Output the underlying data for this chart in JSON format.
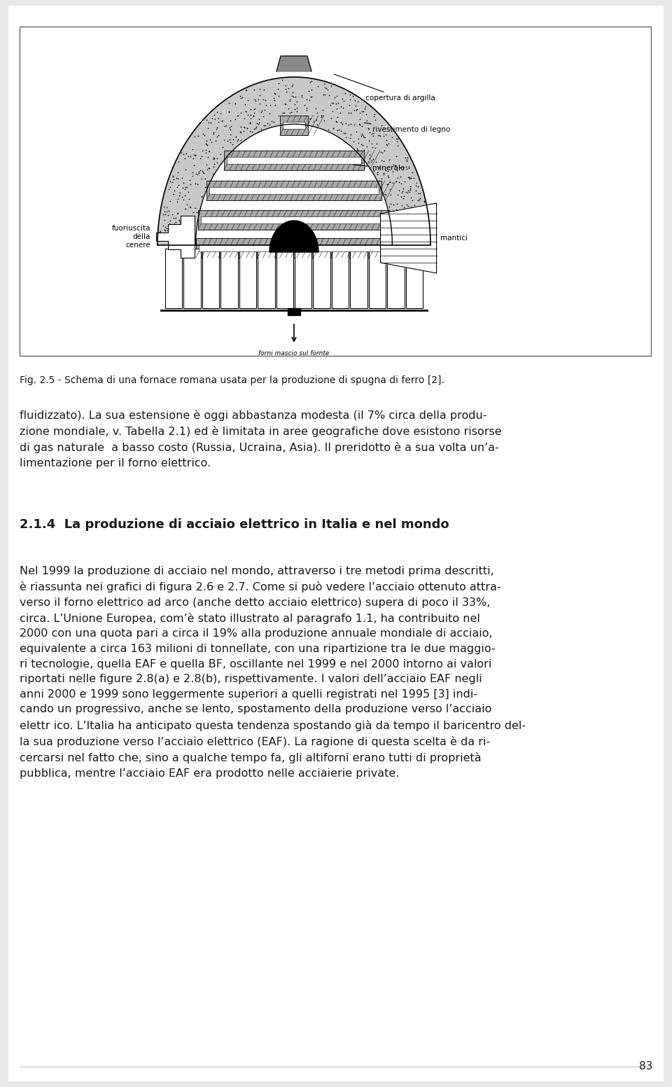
{
  "background_color": "#e8e8e8",
  "page_background": "#ffffff",
  "fig_caption": "Fig. 2.5 - Schema di una fornace romana usata per la produzione di spugna di ferro [2].",
  "fig_caption_fontsize": 10.0,
  "para1": {
    "text": "fluidizzato). La sua estensione è oggi abbastanza modesta (il 7% circa della produ-\nzione mondiale, v. Tabella 2.1) ed è limitata in aree geografiche dove esistono risorse\ndi gas naturale  a basso costo (Russia, Ucraina, Asia). Il preridotto è a sua volta un’a-\nlimentazione per il forno elettrico.",
    "fontsize": 11.5,
    "bold": false
  },
  "heading": {
    "text": "2.1.4  La produzione di acciaio elettrico in Italia e nel mondo",
    "fontsize": 13.0,
    "bold": true
  },
  "para2": {
    "text": "Nel 1999 la produzione di acciaio nel mondo, attraverso i tre metodi prima descritti,\nè riassunta nei grafici di figura 2.6 e 2.7. Come si può vedere l’acciaio ottenuto attra-\nverso il forno elettrico ad arco (anche detto acciaio elettrico) supera di poco il 33%,\ncirca. L’Unione Europea, com’è stato illustrato al paragrafo 1.1, ha contribuito nel\n2000 con una quota pari a circa il 19% alla produzione annuale mondiale di acciaio,\nequivalente a circa 163 milioni di tonnellate, con una ripartizione tra le due maggio-\nri tecnologie, quella EAF e quella BF, oscillante nel 1999 e nel 2000 intorno ai valori\nriportati nelle figure 2.8(a) e 2.8(b), rispettivamente. I valori dell’acciaio EAF negli\nanni 2000 e 1999 sono leggermente superiori a quelli registrati nel 1995 [3] indi-\ncando un progressivo, anche se lento, spostamento della produzione verso l’acciaio\nelettr ico. L’Italia ha anticipato questa tendenza spostando già da tempo il baricentro del-\nla sua produzione verso l’acciaio elettrico (EAF). La ragione di questa scelta è da ri-\ncercarsi nel fatto che, sino a qualche tempo fa, gli altiforni erano tutti di proprietà\npubblica, mentre l’acciaio EAF era prodotto nelle acciaierie private.",
    "fontsize": 11.5,
    "bold": false
  },
  "page_number": "83",
  "page_number_fontsize": 11,
  "text_color": "#1a1a1a"
}
